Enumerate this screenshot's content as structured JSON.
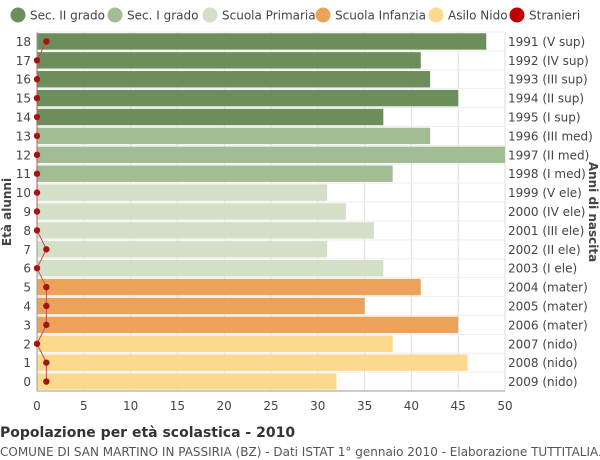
{
  "chart_data": {
    "type": "bar",
    "orientation": "horizontal",
    "ylabel": "Età alunni",
    "ylabel_right": "Anni di nascita",
    "xlim": [
      0,
      50
    ],
    "x_ticks": [
      0,
      5,
      10,
      15,
      20,
      25,
      30,
      35,
      40,
      45,
      50
    ],
    "grid": true,
    "legend_position": "top",
    "legend": [
      {
        "name": "Sec. II grado",
        "color": "#6b8e5a"
      },
      {
        "name": "Sec. I grado",
        "color": "#a2bc94"
      },
      {
        "name": "Scuola Primaria",
        "color": "#d3dfc6"
      },
      {
        "name": "Scuola Infanzia",
        "color": "#eda25a"
      },
      {
        "name": "Asilo Nido",
        "color": "#fdd98e"
      },
      {
        "name": "Stranieri",
        "color": "#c00000"
      }
    ],
    "rows": [
      {
        "age": "18",
        "year": "1991 (V sup)",
        "value": 48,
        "stranieri": 1,
        "group": 0
      },
      {
        "age": "17",
        "year": "1992 (IV sup)",
        "value": 41,
        "stranieri": 0,
        "group": 0
      },
      {
        "age": "16",
        "year": "1993 (III sup)",
        "value": 42,
        "stranieri": 0,
        "group": 0
      },
      {
        "age": "15",
        "year": "1994 (II sup)",
        "value": 45,
        "stranieri": 0,
        "group": 0
      },
      {
        "age": "14",
        "year": "1995 (I sup)",
        "value": 37,
        "stranieri": 0,
        "group": 0
      },
      {
        "age": "13",
        "year": "1996 (III med)",
        "value": 42,
        "stranieri": 0,
        "group": 1
      },
      {
        "age": "12",
        "year": "1997 (II med)",
        "value": 50,
        "stranieri": 0,
        "group": 1
      },
      {
        "age": "11",
        "year": "1998 (I med)",
        "value": 38,
        "stranieri": 0,
        "group": 1
      },
      {
        "age": "10",
        "year": "1999 (V ele)",
        "value": 31,
        "stranieri": 0,
        "group": 2
      },
      {
        "age": "9",
        "year": "2000 (IV ele)",
        "value": 33,
        "stranieri": 0,
        "group": 2
      },
      {
        "age": "8",
        "year": "2001 (III ele)",
        "value": 36,
        "stranieri": 0,
        "group": 2
      },
      {
        "age": "7",
        "year": "2002 (II ele)",
        "value": 31,
        "stranieri": 1,
        "group": 2
      },
      {
        "age": "6",
        "year": "2003 (I ele)",
        "value": 37,
        "stranieri": 0,
        "group": 2
      },
      {
        "age": "5",
        "year": "2004 (mater)",
        "value": 41,
        "stranieri": 1,
        "group": 3
      },
      {
        "age": "4",
        "year": "2005 (mater)",
        "value": 35,
        "stranieri": 1,
        "group": 3
      },
      {
        "age": "3",
        "year": "2006 (mater)",
        "value": 45,
        "stranieri": 1,
        "group": 3
      },
      {
        "age": "2",
        "year": "2007 (nido)",
        "value": 38,
        "stranieri": 0,
        "group": 4
      },
      {
        "age": "1",
        "year": "2008 (nido)",
        "value": 46,
        "stranieri": 1,
        "group": 4
      },
      {
        "age": "0",
        "year": "2009 (nido)",
        "value": 32,
        "stranieri": 1,
        "group": 4
      }
    ]
  },
  "footer": {
    "title": "Popolazione per età scolastica - 2010",
    "subtitle": "COMUNE DI SAN MARTINO IN PASSIRIA (BZ) - Dati ISTAT 1° gennaio 2010 - Elaborazione TUTTITALIA.IT"
  }
}
